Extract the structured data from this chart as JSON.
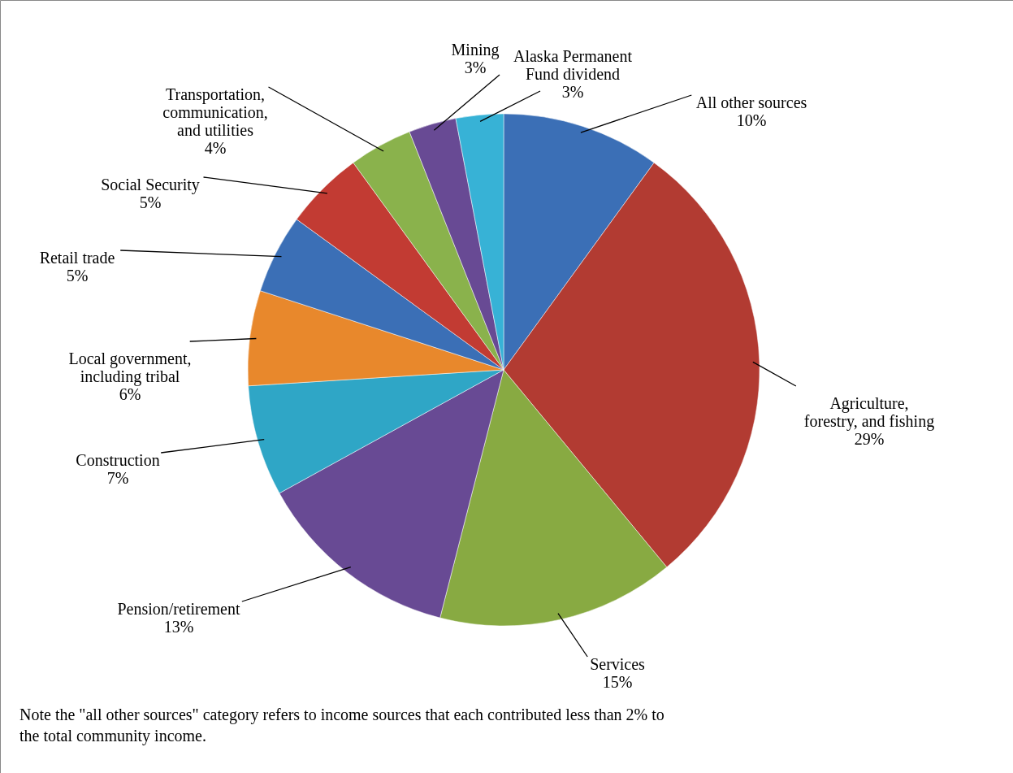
{
  "chart_data": {
    "type": "pie",
    "categories": [
      "All other sources",
      "Agriculture,\nforestry, and fishing",
      "Services",
      "Pension/retirement",
      "Construction",
      "Local government,\nincluding tribal",
      "Retail trade",
      "Social Security",
      "Transportation,\ncommunication,\nand utilities",
      "Mining",
      "Alaska Permanent\nFund dividend"
    ],
    "values": [
      10,
      29,
      15,
      13,
      7,
      6,
      5,
      5,
      4,
      3,
      3
    ],
    "value_labels": [
      "10%",
      "29%",
      "15%",
      "13%",
      "7%",
      "6%",
      "5%",
      "5%",
      "4%",
      "3%",
      "3%"
    ],
    "colors": [
      "#3b6fb6",
      "#b23b32",
      "#88aa42",
      "#684a94",
      "#2fa6c6",
      "#e8882c",
      "#3b6fb6",
      "#c23b33",
      "#8ab24c",
      "#684a94",
      "#37b2d6"
    ],
    "annotations": [
      "Note the \"all other sources\" category refers to income sources that each contributed less than 2% to\nthe total community income."
    ]
  }
}
